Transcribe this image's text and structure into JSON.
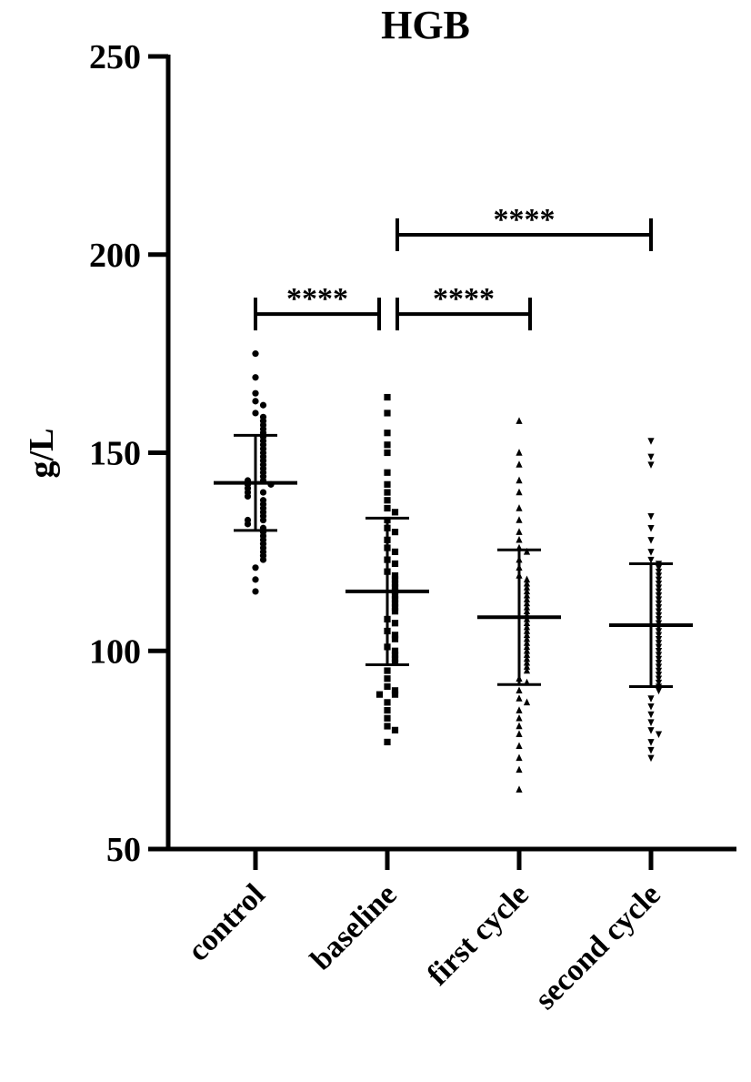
{
  "chart_data": {
    "type": "scatter-dot",
    "title": "HGB",
    "y_label": "g/L",
    "categories": [
      "control",
      "baseline",
      "first cycle",
      "second cycle"
    ],
    "ylim": [
      50,
      250
    ],
    "yticks": [
      50,
      100,
      150,
      200,
      250
    ],
    "series": [
      {
        "marker": "circle",
        "color": "#000000",
        "mean": 142.4,
        "sd": 12,
        "values": [
          175,
          169,
          165,
          163,
          162,
          160,
          159,
          158,
          157,
          156,
          155,
          154,
          153,
          152,
          151,
          150,
          149,
          148,
          147,
          146,
          145,
          144,
          143,
          143,
          142,
          142,
          141,
          140,
          140,
          139,
          138,
          137,
          136,
          135,
          134,
          133,
          133,
          132,
          131,
          130,
          129,
          128,
          127,
          126,
          125,
          124,
          123,
          121,
          118,
          115
        ]
      },
      {
        "marker": "square",
        "color": "#000000",
        "mean": 115,
        "sd": 18.5,
        "values": [
          164,
          160,
          155,
          152,
          150,
          145,
          142,
          140,
          138,
          136,
          135,
          133,
          131,
          130,
          128,
          126,
          125,
          123,
          122,
          120,
          119,
          118,
          117,
          116,
          115,
          114,
          113,
          112,
          111,
          110,
          108,
          107,
          105,
          104,
          103,
          101,
          100,
          99,
          98,
          97,
          95,
          93,
          91,
          90,
          89,
          89,
          87,
          85,
          83,
          81,
          80,
          77
        ]
      },
      {
        "marker": "triangle-up",
        "color": "#000000",
        "mean": 108.5,
        "sd": 17,
        "values": [
          158,
          150,
          147,
          143,
          140,
          136,
          133,
          130,
          128,
          126,
          125,
          123,
          121,
          119,
          118,
          117,
          116,
          115,
          114,
          113,
          112,
          111,
          110,
          109,
          108,
          107,
          106,
          105,
          104,
          103,
          102,
          101,
          100,
          99,
          98,
          97,
          96,
          95,
          93,
          92,
          90,
          88,
          87,
          85,
          83,
          81,
          79,
          76,
          73,
          70,
          65
        ]
      },
      {
        "marker": "triangle-down",
        "color": "#000000",
        "mean": 106.5,
        "sd": 15.5,
        "values": [
          153,
          149,
          147,
          134,
          131,
          128,
          125,
          123,
          122,
          121,
          120,
          119,
          118,
          117,
          116,
          115,
          114,
          113,
          112,
          111,
          110,
          109,
          108,
          107,
          106,
          105,
          104,
          103,
          102,
          101,
          100,
          99,
          98,
          97,
          96,
          95,
          94,
          93,
          92,
          91,
          90,
          88,
          86,
          84,
          82,
          80,
          79,
          77,
          75,
          73
        ]
      }
    ],
    "comparisons": [
      {
        "groups": [
          0,
          1
        ],
        "label": "****",
        "y": 185
      },
      {
        "groups": [
          1,
          2
        ],
        "label": "****",
        "y": 185
      },
      {
        "groups": [
          1,
          3
        ],
        "label": "****",
        "y": 205
      }
    ]
  }
}
